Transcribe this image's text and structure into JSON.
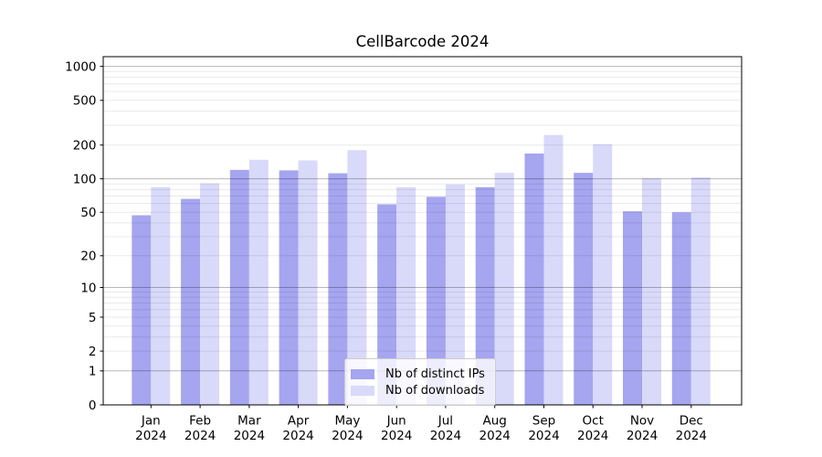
{
  "chart_data": {
    "type": "bar",
    "title": "CellBarcode 2024",
    "categories": [
      "Jan",
      "Feb",
      "Mar",
      "Apr",
      "May",
      "Jun",
      "Jul",
      "Aug",
      "Sep",
      "Oct",
      "Nov",
      "Dec"
    ],
    "x_tick_second_line": "2024",
    "series": [
      {
        "name": "Nb of distinct IPs",
        "color": "#a5a5f0",
        "values": [
          47,
          66,
          120,
          119,
          112,
          59,
          69,
          84,
          168,
          113,
          51,
          50
        ]
      },
      {
        "name": "Nb of downloads",
        "color": "#d9d9fa",
        "values": [
          84,
          91,
          148,
          146,
          180,
          84,
          89,
          113,
          246,
          204,
          101,
          103
        ]
      }
    ],
    "yscale": "log1p",
    "ylim": [
      0,
      1220
    ],
    "yticks": [
      0,
      1,
      2,
      5,
      10,
      20,
      50,
      100,
      200,
      500,
      1000
    ],
    "grid": {
      "major": [
        1,
        10,
        100,
        1000
      ],
      "minor": [
        2,
        3,
        4,
        5,
        6,
        7,
        8,
        9,
        20,
        30,
        40,
        50,
        60,
        70,
        80,
        90,
        200,
        300,
        400,
        500,
        600,
        700,
        800,
        900
      ],
      "major_color": "rgba(0,0,0,0.28)",
      "minor_color": "rgba(0,0,0,0.085)"
    },
    "legend_position": "lower center",
    "axis_color": "#000000",
    "background_color": "#ffffff"
  }
}
